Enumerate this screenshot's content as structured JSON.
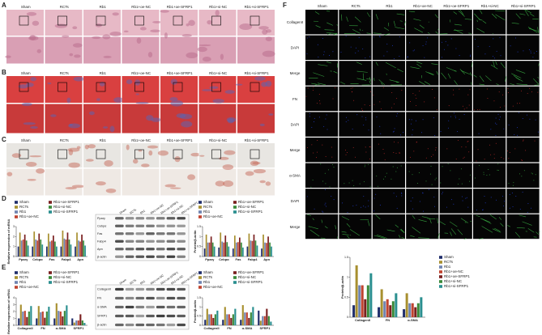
{
  "panel_letters": [
    "A",
    "B",
    "C",
    "D",
    "E",
    "F"
  ],
  "group_labels": [
    "Sham",
    "RCTs",
    "Rb1",
    "Rb1+oe-NC",
    "Rb1+oe-SFRP1",
    "Rb1+si-NC",
    "Rb1+si-SFRP1"
  ],
  "f_row_labels": [
    "CollagenII",
    "DAPI",
    "Merge",
    "FN",
    "DAPI",
    "Merge",
    "α-SMA",
    "DAPI",
    "Merge"
  ],
  "blot_d_labels": [
    "Pparγ",
    "Cebpα",
    "Fas",
    "Fabp4",
    "Apn",
    "β-actin"
  ],
  "blot_e_labels": [
    "CollagenII",
    "FN",
    "α-SMA",
    "SFRP1",
    "β-actin"
  ],
  "chart_data": [
    {
      "type": "bar",
      "y_label": "Relative expression of mRNA",
      "categories": [
        "Pparγ",
        "Cebpα",
        "Fas",
        "Fabp4",
        "Apn"
      ],
      "ylim": [
        0,
        3
      ],
      "yticks": [
        0,
        1,
        2,
        3
      ],
      "series": [
        {
          "name": "Sham",
          "color": "#1f2d6b",
          "values": [
            1,
            1,
            1,
            1,
            1
          ]
        },
        {
          "name": "RCTs",
          "color": "#a89030",
          "values": [
            2.4,
            2.5,
            2.3,
            2.6,
            2.4
          ]
        },
        {
          "name": "Rb1",
          "color": "#6f84b0",
          "values": [
            1.6,
            1.7,
            1.5,
            1.8,
            1.6
          ]
        },
        {
          "name": "Rb1+oe-NC",
          "color": "#c0432f",
          "values": [
            1.7,
            1.6,
            1.6,
            1.7,
            1.5
          ]
        },
        {
          "name": "Rb1+oe-SFRP1",
          "color": "#7a1f1f",
          "values": [
            2.2,
            2.3,
            2.1,
            2.4,
            2.2
          ]
        },
        {
          "name": "Rb1+si-NC",
          "color": "#3a8a3a",
          "values": [
            1.6,
            1.7,
            1.5,
            1.7,
            1.6
          ]
        },
        {
          "name": "Rb1+si-SFRP1",
          "color": "#2a8f8f",
          "values": [
            1.1,
            1.2,
            1,
            1.2,
            1.1
          ]
        }
      ]
    },
    {
      "type": "bar",
      "y_label": "Protein/β-actin",
      "categories": [
        "Pparγ",
        "Cebpα",
        "Fas",
        "Fabp4",
        "Apn"
      ],
      "ylim": [
        0,
        1.5
      ],
      "yticks": [
        0,
        0.5,
        1,
        1.5
      ],
      "series": [
        {
          "name": "Sham",
          "color": "#1f2d6b",
          "values": [
            0.4,
            0.45,
            0.4,
            0.5,
            0.4
          ]
        },
        {
          "name": "RCTs",
          "color": "#a89030",
          "values": [
            1.1,
            1.2,
            1.05,
            1.15,
            1.1
          ]
        },
        {
          "name": "Rb1",
          "color": "#6f84b0",
          "values": [
            0.7,
            0.75,
            0.7,
            0.8,
            0.7
          ]
        },
        {
          "name": "Rb1+oe-NC",
          "color": "#c0432f",
          "values": [
            0.7,
            0.7,
            0.72,
            0.78,
            0.68
          ]
        },
        {
          "name": "Rb1+oe-SFRP1",
          "color": "#7a1f1f",
          "values": [
            1,
            1.05,
            0.95,
            1.1,
            1
          ]
        },
        {
          "name": "Rb1+si-NC",
          "color": "#3a8a3a",
          "values": [
            0.7,
            0.72,
            0.7,
            0.8,
            0.7
          ]
        },
        {
          "name": "Rb1+si-SFRP1",
          "color": "#2a8f8f",
          "values": [
            0.5,
            0.5,
            0.45,
            0.55,
            0.5
          ]
        }
      ]
    },
    {
      "type": "bar",
      "y_label": "Relative expression of mRNA",
      "categories": [
        "CollagenII",
        "FN",
        "α-SMA",
        "SFRP1"
      ],
      "ylim": [
        0,
        4
      ],
      "yticks": [
        0,
        1,
        2,
        3,
        4
      ],
      "series": [
        {
          "name": "Sham",
          "color": "#1f2d6b",
          "values": [
            1,
            1,
            1,
            1
          ]
        },
        {
          "name": "RCTs",
          "color": "#a89030",
          "values": [
            3,
            2.8,
            3.2,
            0.4
          ]
        },
        {
          "name": "Rb1",
          "color": "#6f84b0",
          "values": [
            2,
            1.9,
            2.1,
            0.7
          ]
        },
        {
          "name": "Rb1+oe-NC",
          "color": "#c0432f",
          "values": [
            2.1,
            2,
            2,
            0.7
          ]
        },
        {
          "name": "Rb1+oe-SFRP1",
          "color": "#7a1f1f",
          "values": [
            1.2,
            1.1,
            1.3,
            1.6
          ]
        },
        {
          "name": "Rb1+si-NC",
          "color": "#3a8a3a",
          "values": [
            2,
            2,
            2.1,
            0.7
          ]
        },
        {
          "name": "Rb1+si-SFRP1",
          "color": "#2a8f8f",
          "values": [
            2.8,
            2.7,
            2.9,
            0.35
          ]
        }
      ]
    },
    {
      "type": "bar",
      "y_label": "Protein/β-actin",
      "categories": [
        "CollagenII",
        "FN",
        "α-SMA",
        "SFRP1"
      ],
      "ylim": [
        0,
        1.5
      ],
      "yticks": [
        0,
        0.5,
        1,
        1.5
      ],
      "series": [
        {
          "name": "Sham",
          "color": "#1f2d6b",
          "values": [
            0.3,
            0.3,
            0.3,
            0.8
          ]
        },
        {
          "name": "RCTs",
          "color": "#a89030",
          "values": [
            0.9,
            1,
            1.1,
            0.25
          ]
        },
        {
          "name": "Rb1",
          "color": "#6f84b0",
          "values": [
            0.6,
            0.6,
            0.7,
            0.5
          ]
        },
        {
          "name": "Rb1+oe-NC",
          "color": "#c0432f",
          "values": [
            0.6,
            0.6,
            0.7,
            0.5
          ]
        },
        {
          "name": "Rb1+oe-SFRP1",
          "color": "#7a1f1f",
          "values": [
            0.4,
            0.4,
            0.4,
            0.9
          ]
        },
        {
          "name": "Rb1+si-NC",
          "color": "#3a8a3a",
          "values": [
            0.6,
            0.6,
            0.7,
            0.5
          ]
        },
        {
          "name": "Rb1+si-SFRP1",
          "color": "#2a8f8f",
          "values": [
            0.8,
            0.9,
            1,
            0.2
          ]
        }
      ]
    },
    {
      "type": "bar",
      "y_label": "Protein/β-actin",
      "categories": [
        "CollagenII",
        "FN",
        "α-SMA"
      ],
      "ylim": [
        0,
        1.5
      ],
      "yticks": [
        0,
        0.5,
        1,
        1.5
      ],
      "series": [
        {
          "name": "Sham",
          "color": "#1f2d6b",
          "values": [
            0.3,
            0.25,
            0.2
          ]
        },
        {
          "name": "RCTs",
          "color": "#a89030",
          "values": [
            1.3,
            0.7,
            0.6
          ]
        },
        {
          "name": "Rb1",
          "color": "#6f84b0",
          "values": [
            0.8,
            0.4,
            0.35
          ]
        },
        {
          "name": "Rb1+oe-NC",
          "color": "#c0432f",
          "values": [
            0.8,
            0.45,
            0.35
          ]
        },
        {
          "name": "Rb1+oe-SFRP1",
          "color": "#7a1f1f",
          "values": [
            0.45,
            0.3,
            0.25
          ]
        },
        {
          "name": "Rb1+si-NC",
          "color": "#3a8a3a",
          "values": [
            0.8,
            0.4,
            0.35
          ]
        },
        {
          "name": "Rb1+si-SFRP1",
          "color": "#2a8f8f",
          "values": [
            1.1,
            0.6,
            0.5
          ]
        }
      ]
    }
  ]
}
